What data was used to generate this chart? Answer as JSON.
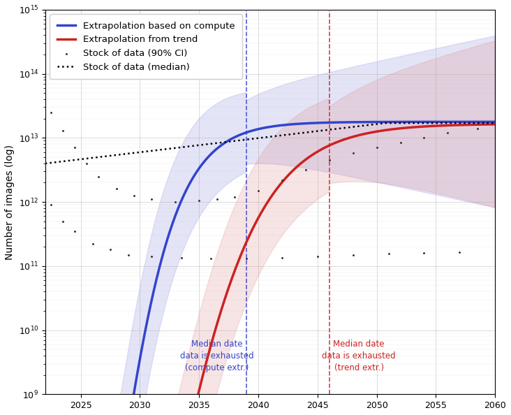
{
  "x_min": 2022,
  "x_max": 2060,
  "y_min": 1000000000.0,
  "y_max": 1000000000000000.0,
  "blue_vline": 2039,
  "red_vline": 2046,
  "blue_color": "#3344cc",
  "red_color": "#cc2222",
  "blue_fill_color": "#8888dd",
  "red_fill_color": "#dd8888",
  "ylabel": "Number of images (log)",
  "legend_entries": [
    "Extrapolation based on compute",
    "Extrapolation from trend",
    "Stock of data (90% CI)",
    "Stock of data (median)"
  ],
  "blue_annotation": "Median date\ndata is exhausted\n(compute extr.)",
  "red_annotation": "Median date\ndata is exhausted\n(trend extr.)",
  "background_color": "#ffffff",
  "scatter_upper_x": [
    2022.5,
    2023.5,
    2024.0,
    2025.0,
    2026.0,
    2027.0,
    2028.0,
    2029.5,
    2031.0,
    2033.0,
    2035.0,
    2037.0,
    2039.0,
    2041.0,
    2043.0,
    2045.0,
    2047.0,
    2049.0,
    2051.0,
    2053.0,
    2056.0,
    2059.0
  ],
  "scatter_upper_y": [
    25000000000000.0,
    15000000000000.0,
    10000000000000.0,
    5000000000000.0,
    3000000000000.0,
    2000000000000.0,
    1500000000000.0,
    1200000000000.0,
    1100000000000.0,
    1050000000000.0,
    1100000000000.0,
    1150000000000.0,
    1300000000000.0,
    2000000000000.0,
    3000000000000.0,
    4500000000000.0,
    5500000000000.0,
    6500000000000.0,
    7500000000000.0,
    8500000000000.0,
    10000000000000.0,
    13000000000000.0
  ],
  "scatter_lower_x": [
    2022.5,
    2024.0,
    2025.0,
    2026.0,
    2027.0,
    2028.5,
    2030.0,
    2032.0,
    2034.0,
    2036.0,
    2038.0,
    2040.0,
    2043.0,
    2046.0,
    2049.0,
    2052.0,
    2055.0,
    2058.0
  ],
  "scatter_lower_y": [
    950000000000.0,
    700000000000.0,
    500000000000.0,
    350000000000.0,
    250000000000.0,
    200000000000.0,
    170000000000.0,
    150000000000.0,
    140000000000.0,
    135000000000.0,
    130000000000.0,
    130000000000.0,
    135000000000.0,
    140000000000.0,
    150000000000.0,
    155000000000.0,
    160000000000.0,
    165000000000.0
  ]
}
